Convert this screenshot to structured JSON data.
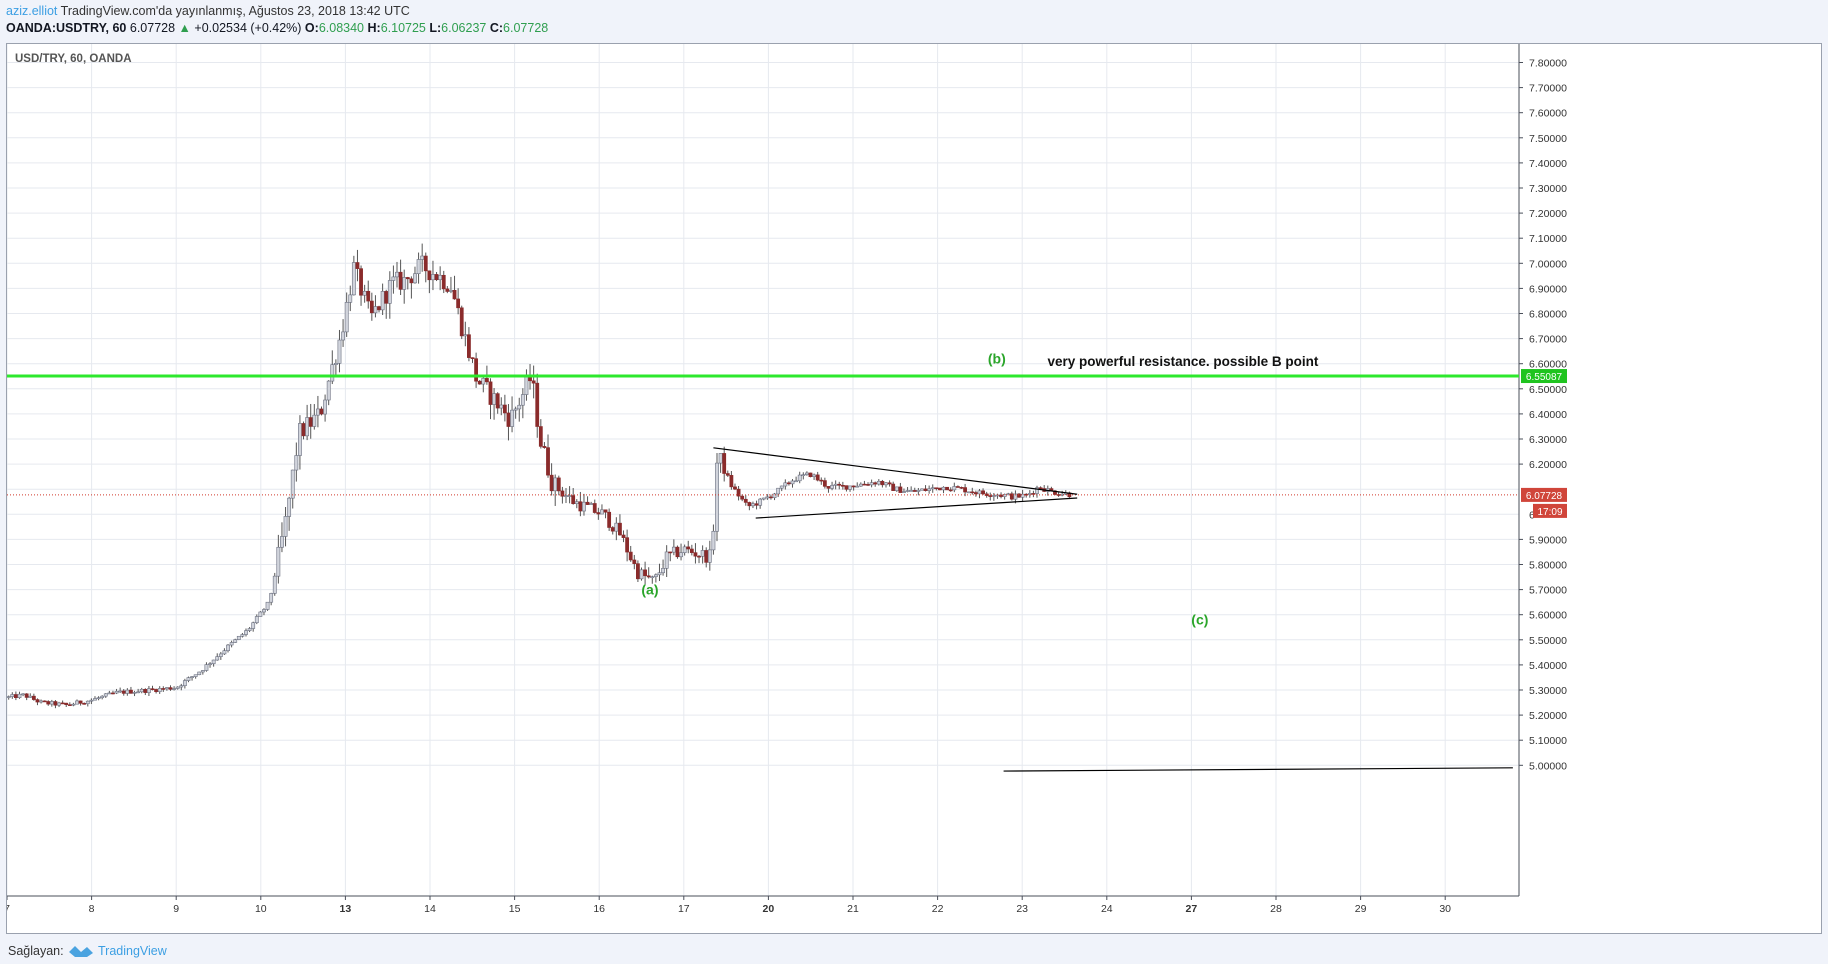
{
  "header": {
    "author": "aziz.elliot",
    "published": "TradingView.com'da yayınlanmış, Ağustos 23, 2018 13:42 UTC",
    "symbol": "OANDA:USDTRY, 60",
    "last": "6.07728",
    "change": "+0.02534 (+0.42%)",
    "o_label": "O:",
    "o_value": "6.08340",
    "h_label": "H:",
    "h_value": "6.10725",
    "l_label": "L:",
    "l_value": "6.06237",
    "c_label": "C:",
    "c_value": "6.07728"
  },
  "footer": {
    "provider_label": "Sağlayan:",
    "provider_name": "TradingView"
  },
  "colors": {
    "up_candle": "#d1d4dc",
    "down_candle": "#8a2b2b",
    "resistance": "#2de82d",
    "price_line": "#d0392b",
    "wave_label": "#2aa52a"
  },
  "chart_data": {
    "type": "candlestick",
    "title": "USD/TRY, 60, OANDA",
    "y_axis": {
      "min": 4.96,
      "max": 7.85,
      "ticks": [
        "7.80000",
        "7.70000",
        "7.60000",
        "7.50000",
        "7.40000",
        "7.30000",
        "7.20000",
        "7.10000",
        "7.00000",
        "6.90000",
        "6.80000",
        "6.70000",
        "6.60000",
        "6.50000",
        "6.40000",
        "6.30000",
        "6.20000",
        "5.90000",
        "5.80000",
        "5.70000",
        "5.60000",
        "5.50000",
        "5.40000",
        "5.30000",
        "5.20000",
        "5.10000",
        "5.00000"
      ],
      "partial_tick": "6"
    },
    "x_axis": {
      "labels": [
        {
          "t": "7",
          "pos": 0,
          "bold": false
        },
        {
          "t": "8",
          "pos": 1,
          "bold": false
        },
        {
          "t": "9",
          "pos": 2,
          "bold": false
        },
        {
          "t": "10",
          "pos": 3,
          "bold": false
        },
        {
          "t": "13",
          "pos": 4,
          "bold": true
        },
        {
          "t": "14",
          "pos": 5,
          "bold": false
        },
        {
          "t": "15",
          "pos": 6,
          "bold": false
        },
        {
          "t": "16",
          "pos": 7,
          "bold": false
        },
        {
          "t": "17",
          "pos": 8,
          "bold": false
        },
        {
          "t": "20",
          "pos": 9,
          "bold": true
        },
        {
          "t": "21",
          "pos": 10,
          "bold": false
        },
        {
          "t": "22",
          "pos": 11,
          "bold": false
        },
        {
          "t": "23",
          "pos": 12,
          "bold": false
        },
        {
          "t": "24",
          "pos": 13,
          "bold": false
        },
        {
          "t": "27",
          "pos": 14,
          "bold": true
        },
        {
          "t": "28",
          "pos": 15,
          "bold": false
        },
        {
          "t": "29",
          "pos": 16,
          "bold": false
        },
        {
          "t": "30",
          "pos": 17,
          "bold": false
        }
      ]
    },
    "resistance": {
      "value": 6.55087,
      "label": "6.55087"
    },
    "current_price": {
      "value": 6.07728,
      "label": "6.07728",
      "countdown": "17:09"
    },
    "annotations": [
      {
        "text": "(a)",
        "pos": 7.6,
        "price": 5.68
      },
      {
        "text": "(b)",
        "pos": 11.7,
        "price": 6.6
      },
      {
        "text": "(c)",
        "pos": 14.1,
        "price": 5.56
      },
      {
        "text": "very powerful resistance. possible B point",
        "pos": 13.9,
        "price": 6.59
      }
    ],
    "triangle": {
      "upper": [
        [
          8.35,
          6.265
        ],
        [
          12.65,
          6.08
        ]
      ],
      "lower": [
        [
          8.85,
          5.985
        ],
        [
          12.65,
          6.065
        ]
      ]
    },
    "bottom_line": [
      [
        11.78,
        4.977
      ],
      [
        17.8,
        4.99
      ]
    ],
    "anchors": [
      [
        0.0,
        5.27
      ],
      [
        0.2,
        5.28
      ],
      [
        0.4,
        5.25
      ],
      [
        0.7,
        5.24
      ],
      [
        1.0,
        5.26
      ],
      [
        1.3,
        5.29
      ],
      [
        1.7,
        5.3
      ],
      [
        2.0,
        5.31
      ],
      [
        2.3,
        5.38
      ],
      [
        2.6,
        5.47
      ],
      [
        2.85,
        5.54
      ],
      [
        3.1,
        5.65
      ],
      [
        3.3,
        5.98
      ],
      [
        3.45,
        6.32
      ],
      [
        3.7,
        6.4
      ],
      [
        3.95,
        6.72
      ],
      [
        4.1,
        6.98
      ],
      [
        4.3,
        6.78
      ],
      [
        4.55,
        6.92
      ],
      [
        4.7,
        6.93
      ],
      [
        4.9,
        6.99
      ],
      [
        5.1,
        6.95
      ],
      [
        5.25,
        6.91
      ],
      [
        5.4,
        6.72
      ],
      [
        5.55,
        6.54
      ],
      [
        5.75,
        6.46
      ],
      [
        5.95,
        6.38
      ],
      [
        6.1,
        6.48
      ],
      [
        6.2,
        6.55
      ],
      [
        6.3,
        6.3
      ],
      [
        6.45,
        6.12
      ],
      [
        6.7,
        6.05
      ],
      [
        6.9,
        6.02
      ],
      [
        7.05,
        6.0
      ],
      [
        7.25,
        5.92
      ],
      [
        7.45,
        5.77
      ],
      [
        7.65,
        5.73
      ],
      [
        7.8,
        5.83
      ],
      [
        8.0,
        5.86
      ],
      [
        8.2,
        5.84
      ],
      [
        8.33,
        5.83
      ],
      [
        8.4,
        6.25
      ],
      [
        8.55,
        6.12
      ],
      [
        8.75,
        6.03
      ],
      [
        8.9,
        6.05
      ],
      [
        9.1,
        6.09
      ],
      [
        9.3,
        6.14
      ],
      [
        9.5,
        6.16
      ],
      [
        9.7,
        6.11
      ],
      [
        9.9,
        6.11
      ],
      [
        10.1,
        6.12
      ],
      [
        10.3,
        6.13
      ],
      [
        10.5,
        6.1
      ],
      [
        10.7,
        6.09
      ],
      [
        10.9,
        6.1
      ],
      [
        11.1,
        6.11
      ],
      [
        11.3,
        6.1
      ],
      [
        11.5,
        6.085
      ],
      [
        11.7,
        6.08
      ],
      [
        11.9,
        6.07
      ],
      [
        12.05,
        6.075
      ],
      [
        12.2,
        6.11
      ],
      [
        12.35,
        6.09
      ],
      [
        12.55,
        6.08
      ]
    ]
  }
}
